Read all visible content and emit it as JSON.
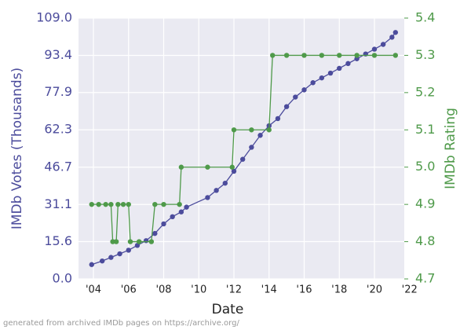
{
  "chart_data": {
    "type": "line",
    "x_label": "Date",
    "y_label": "IMDb Votes (Thousands)",
    "y2_label": "IMDb Rating",
    "footnote": "generated from archived IMDb pages on https://archive.org/",
    "xlim": [
      2003.15,
      2021.7
    ],
    "xticks": [
      {
        "value": 2004,
        "label": "'04"
      },
      {
        "value": 2006,
        "label": "'06"
      },
      {
        "value": 2008,
        "label": "'08"
      },
      {
        "value": 2010,
        "label": "'10"
      },
      {
        "value": 2012,
        "label": "'12"
      },
      {
        "value": 2014,
        "label": "'14"
      },
      {
        "value": 2016,
        "label": "'16"
      },
      {
        "value": 2018,
        "label": "'18"
      },
      {
        "value": 2020,
        "label": "'20"
      },
      {
        "value": 2022,
        "label": "'22"
      }
    ],
    "ylim": [
      0,
      109
    ],
    "yticks": [
      {
        "value": 0,
        "label": "0.0"
      },
      15.6,
      31.1,
      46.7,
      62.3,
      77.9,
      93.4,
      {
        "value": 109,
        "label": "109.0"
      }
    ],
    "y2lim": [
      4.7,
      5.4
    ],
    "y2ticks": [
      4.7,
      4.8,
      4.9,
      {
        "value": 5,
        "label": "5.0"
      },
      5.1,
      5.2,
      5.3,
      5.4
    ],
    "grid": true,
    "series": [
      {
        "name": "IMDb Votes",
        "color": "#4c4c9c",
        "x": [
          2003.9,
          2004.5,
          2005,
          2005.5,
          2006,
          2006.5,
          2007,
          2007.5,
          2008,
          2008.5,
          2009,
          2009.3,
          2010.5,
          2011,
          2011.5,
          2012,
          2012.5,
          2013,
          2013.5,
          2014,
          2014.5,
          2015,
          2015.5,
          2016,
          2016.5,
          2017,
          2017.5,
          2018,
          2018.5,
          2019,
          2019.5,
          2020,
          2020.5,
          2021,
          2021.2
        ],
        "values": [
          6,
          7.5,
          9,
          10.5,
          12,
          14,
          16,
          19,
          23,
          26,
          28,
          30,
          34,
          37,
          40,
          45,
          50,
          55,
          60,
          64,
          67,
          72,
          76,
          79,
          82,
          84,
          86,
          88,
          90,
          92,
          94,
          96,
          98,
          101,
          103
        ]
      },
      {
        "name": "IMDb Rating",
        "color": "#4f9a4a",
        "axis": "y2",
        "x": [
          2003.9,
          2004.3,
          2004.7,
          2005,
          2005.1,
          2005.3,
          2005.4,
          2005.7,
          2006,
          2006.1,
          2006.6,
          2007.3,
          2007.5,
          2008,
          2008.9,
          2009,
          2010.5,
          2011.9,
          2012,
          2013,
          2014,
          2014.2,
          2015,
          2016,
          2017,
          2018,
          2019,
          2020,
          2021.2
        ],
        "values": [
          4.9,
          4.9,
          4.9,
          4.9,
          4.8,
          4.8,
          4.9,
          4.9,
          4.9,
          4.8,
          4.8,
          4.8,
          4.9,
          4.9,
          4.9,
          5.0,
          5.0,
          5.0,
          5.1,
          5.1,
          5.1,
          5.3,
          5.3,
          5.3,
          5.3,
          5.3,
          5.3,
          5.3,
          5.3
        ]
      }
    ]
  }
}
